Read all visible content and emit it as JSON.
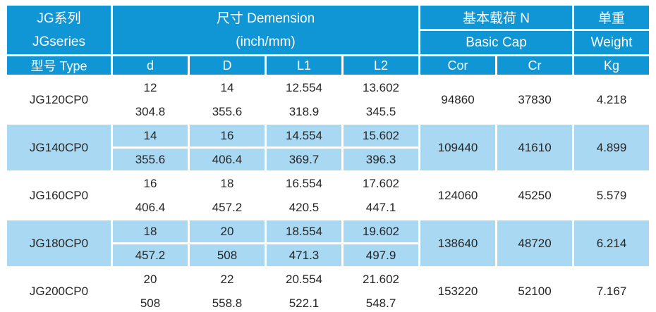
{
  "colors": {
    "header_bg": "#1095D5",
    "stripe_bg": "#A9D8F2",
    "text": "#262626",
    "gridline": "#FFFFFF"
  },
  "header": {
    "series_cn": "JG系列",
    "series_en": "JGseries",
    "dimension_cn": "尺寸 Demension",
    "dimension_unit": "(inch/mm)",
    "load_cn": "基本载荷 N",
    "load_en": "Basic Cap",
    "weight_cn": "单重",
    "weight_en": "Weight",
    "type_label": "型号 Type",
    "dim_columns": [
      "d",
      "D",
      "L1",
      "L2"
    ],
    "load_columns": [
      "Cor",
      "Cr"
    ],
    "weight_column": "Kg"
  },
  "rows": [
    {
      "type": "JG120CP0",
      "shaded": false,
      "d": [
        "12",
        "304.8"
      ],
      "D": [
        "14",
        "355.6"
      ],
      "L1": [
        "12.554",
        "318.9"
      ],
      "L2": [
        "13.602",
        "345.5"
      ],
      "cor": "94860",
      "cr": "37830",
      "kg": "4.218"
    },
    {
      "type": "JG140CP0",
      "shaded": true,
      "d": [
        "14",
        "355.6"
      ],
      "D": [
        "16",
        "406.4"
      ],
      "L1": [
        "14.554",
        "369.7"
      ],
      "L2": [
        "15.602",
        "396.3"
      ],
      "cor": "109440",
      "cr": "41610",
      "kg": "4.899"
    },
    {
      "type": "JG160CP0",
      "shaded": false,
      "d": [
        "16",
        "406.4"
      ],
      "D": [
        "18",
        "457.2"
      ],
      "L1": [
        "16.554",
        "420.5"
      ],
      "L2": [
        "17.602",
        "447.1"
      ],
      "cor": "124060",
      "cr": "45250",
      "kg": "5.579"
    },
    {
      "type": "JG180CP0",
      "shaded": true,
      "d": [
        "18",
        "457.2"
      ],
      "D": [
        "20",
        "508"
      ],
      "L1": [
        "18.554",
        "471.3"
      ],
      "L2": [
        "19.602",
        "497.9"
      ],
      "cor": "138640",
      "cr": "48720",
      "kg": "6.214"
    },
    {
      "type": "JG200CP0",
      "shaded": false,
      "d": [
        "20",
        "508"
      ],
      "D": [
        "22",
        "558.8"
      ],
      "L1": [
        "20.554",
        "522.1"
      ],
      "L2": [
        "21.602",
        "548.7"
      ],
      "cor": "153220",
      "cr": "52100",
      "kg": "7.167"
    }
  ]
}
